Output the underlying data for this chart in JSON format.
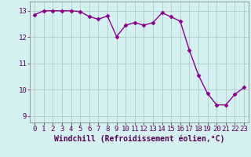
{
  "x": [
    0,
    1,
    2,
    3,
    4,
    5,
    6,
    7,
    8,
    9,
    10,
    11,
    12,
    13,
    14,
    15,
    16,
    17,
    18,
    19,
    20,
    21,
    22,
    23
  ],
  "y": [
    12.85,
    13.0,
    13.0,
    13.0,
    13.0,
    12.97,
    12.78,
    12.68,
    12.8,
    12.02,
    12.45,
    12.55,
    12.45,
    12.55,
    12.92,
    12.77,
    12.6,
    11.5,
    10.55,
    9.85,
    9.42,
    9.42,
    9.82,
    10.08
  ],
  "line_color": "#8B008B",
  "marker": "D",
  "marker_size": 2.5,
  "bg_color": "#d5f0f0",
  "grid_color": "#b0c8c8",
  "xlabel": "Windchill (Refroidissement éolien,°C)",
  "xlabel_fontsize": 7,
  "ylim": [
    8.75,
    13.35
  ],
  "xlim": [
    -0.5,
    23.5
  ],
  "yticks": [
    9,
    10,
    11,
    12,
    13
  ],
  "xticks": [
    0,
    1,
    2,
    3,
    4,
    5,
    6,
    7,
    8,
    9,
    10,
    11,
    12,
    13,
    14,
    15,
    16,
    17,
    18,
    19,
    20,
    21,
    22,
    23
  ],
  "tick_fontsize": 6.5,
  "line_width": 1.0
}
